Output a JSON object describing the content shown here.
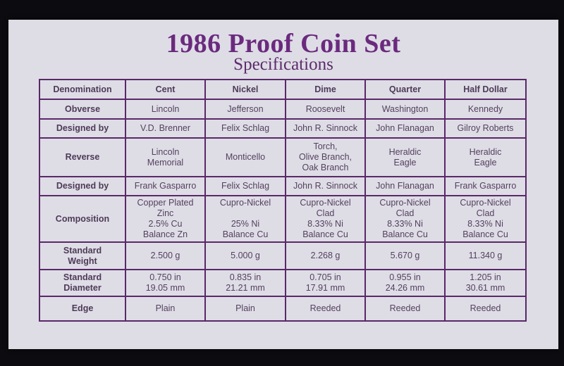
{
  "title": "1986 Proof Coin Set",
  "subtitle": "Specifications",
  "colors": {
    "title": "#6b2a7e",
    "grid": "#5a2868",
    "card": "#dedde6"
  },
  "table": {
    "headers": [
      "Denomination",
      "Cent",
      "Nickel",
      "Dime",
      "Quarter",
      "Half Dollar"
    ],
    "rows": [
      {
        "label": "Obverse",
        "values": [
          "Lincoln",
          "Jefferson",
          "Roosevelt",
          "Washington",
          "Kennedy"
        ]
      },
      {
        "label": "Designed by",
        "values": [
          "V.D. Brenner",
          "Felix Schlag",
          "John R. Sinnock",
          "John Flanagan",
          "Gilroy Roberts"
        ]
      },
      {
        "label": "Reverse",
        "values": [
          "Lincoln\nMemorial",
          "Monticello",
          "Torch,\nOlive Branch,\nOak Branch",
          "Heraldic\nEagle",
          "Heraldic\nEagle"
        ]
      },
      {
        "label": "Designed by",
        "values": [
          "Frank Gasparro",
          "Felix Schlag",
          "John R. Sinnock",
          "John Flanagan",
          "Frank Gasparro"
        ]
      },
      {
        "label": "Composition",
        "values": [
          "Copper Plated\nZinc\n2.5% Cu\nBalance Zn",
          "Cupro-Nickel\n\n25% Ni\nBalance Cu",
          "Cupro-Nickel\nClad\n8.33% Ni\nBalance Cu",
          "Cupro-Nickel\nClad\n8.33% Ni\nBalance Cu",
          "Cupro-Nickel\nClad\n8.33% Ni\nBalance Cu"
        ]
      },
      {
        "label": "Standard\nWeight",
        "values": [
          "2.500 g",
          "5.000 g",
          "2.268 g",
          "5.670 g",
          "11.340 g"
        ]
      },
      {
        "label": "Standard\nDiameter",
        "values": [
          "0.750 in\n19.05 mm",
          "0.835 in\n21.21 mm",
          "0.705 in\n17.91 mm",
          "0.955 in\n24.26 mm",
          "1.205 in\n30.61 mm"
        ]
      },
      {
        "label": "Edge",
        "values": [
          "Plain",
          "Plain",
          "Reeded",
          "Reeded",
          "Reeded"
        ]
      }
    ]
  }
}
